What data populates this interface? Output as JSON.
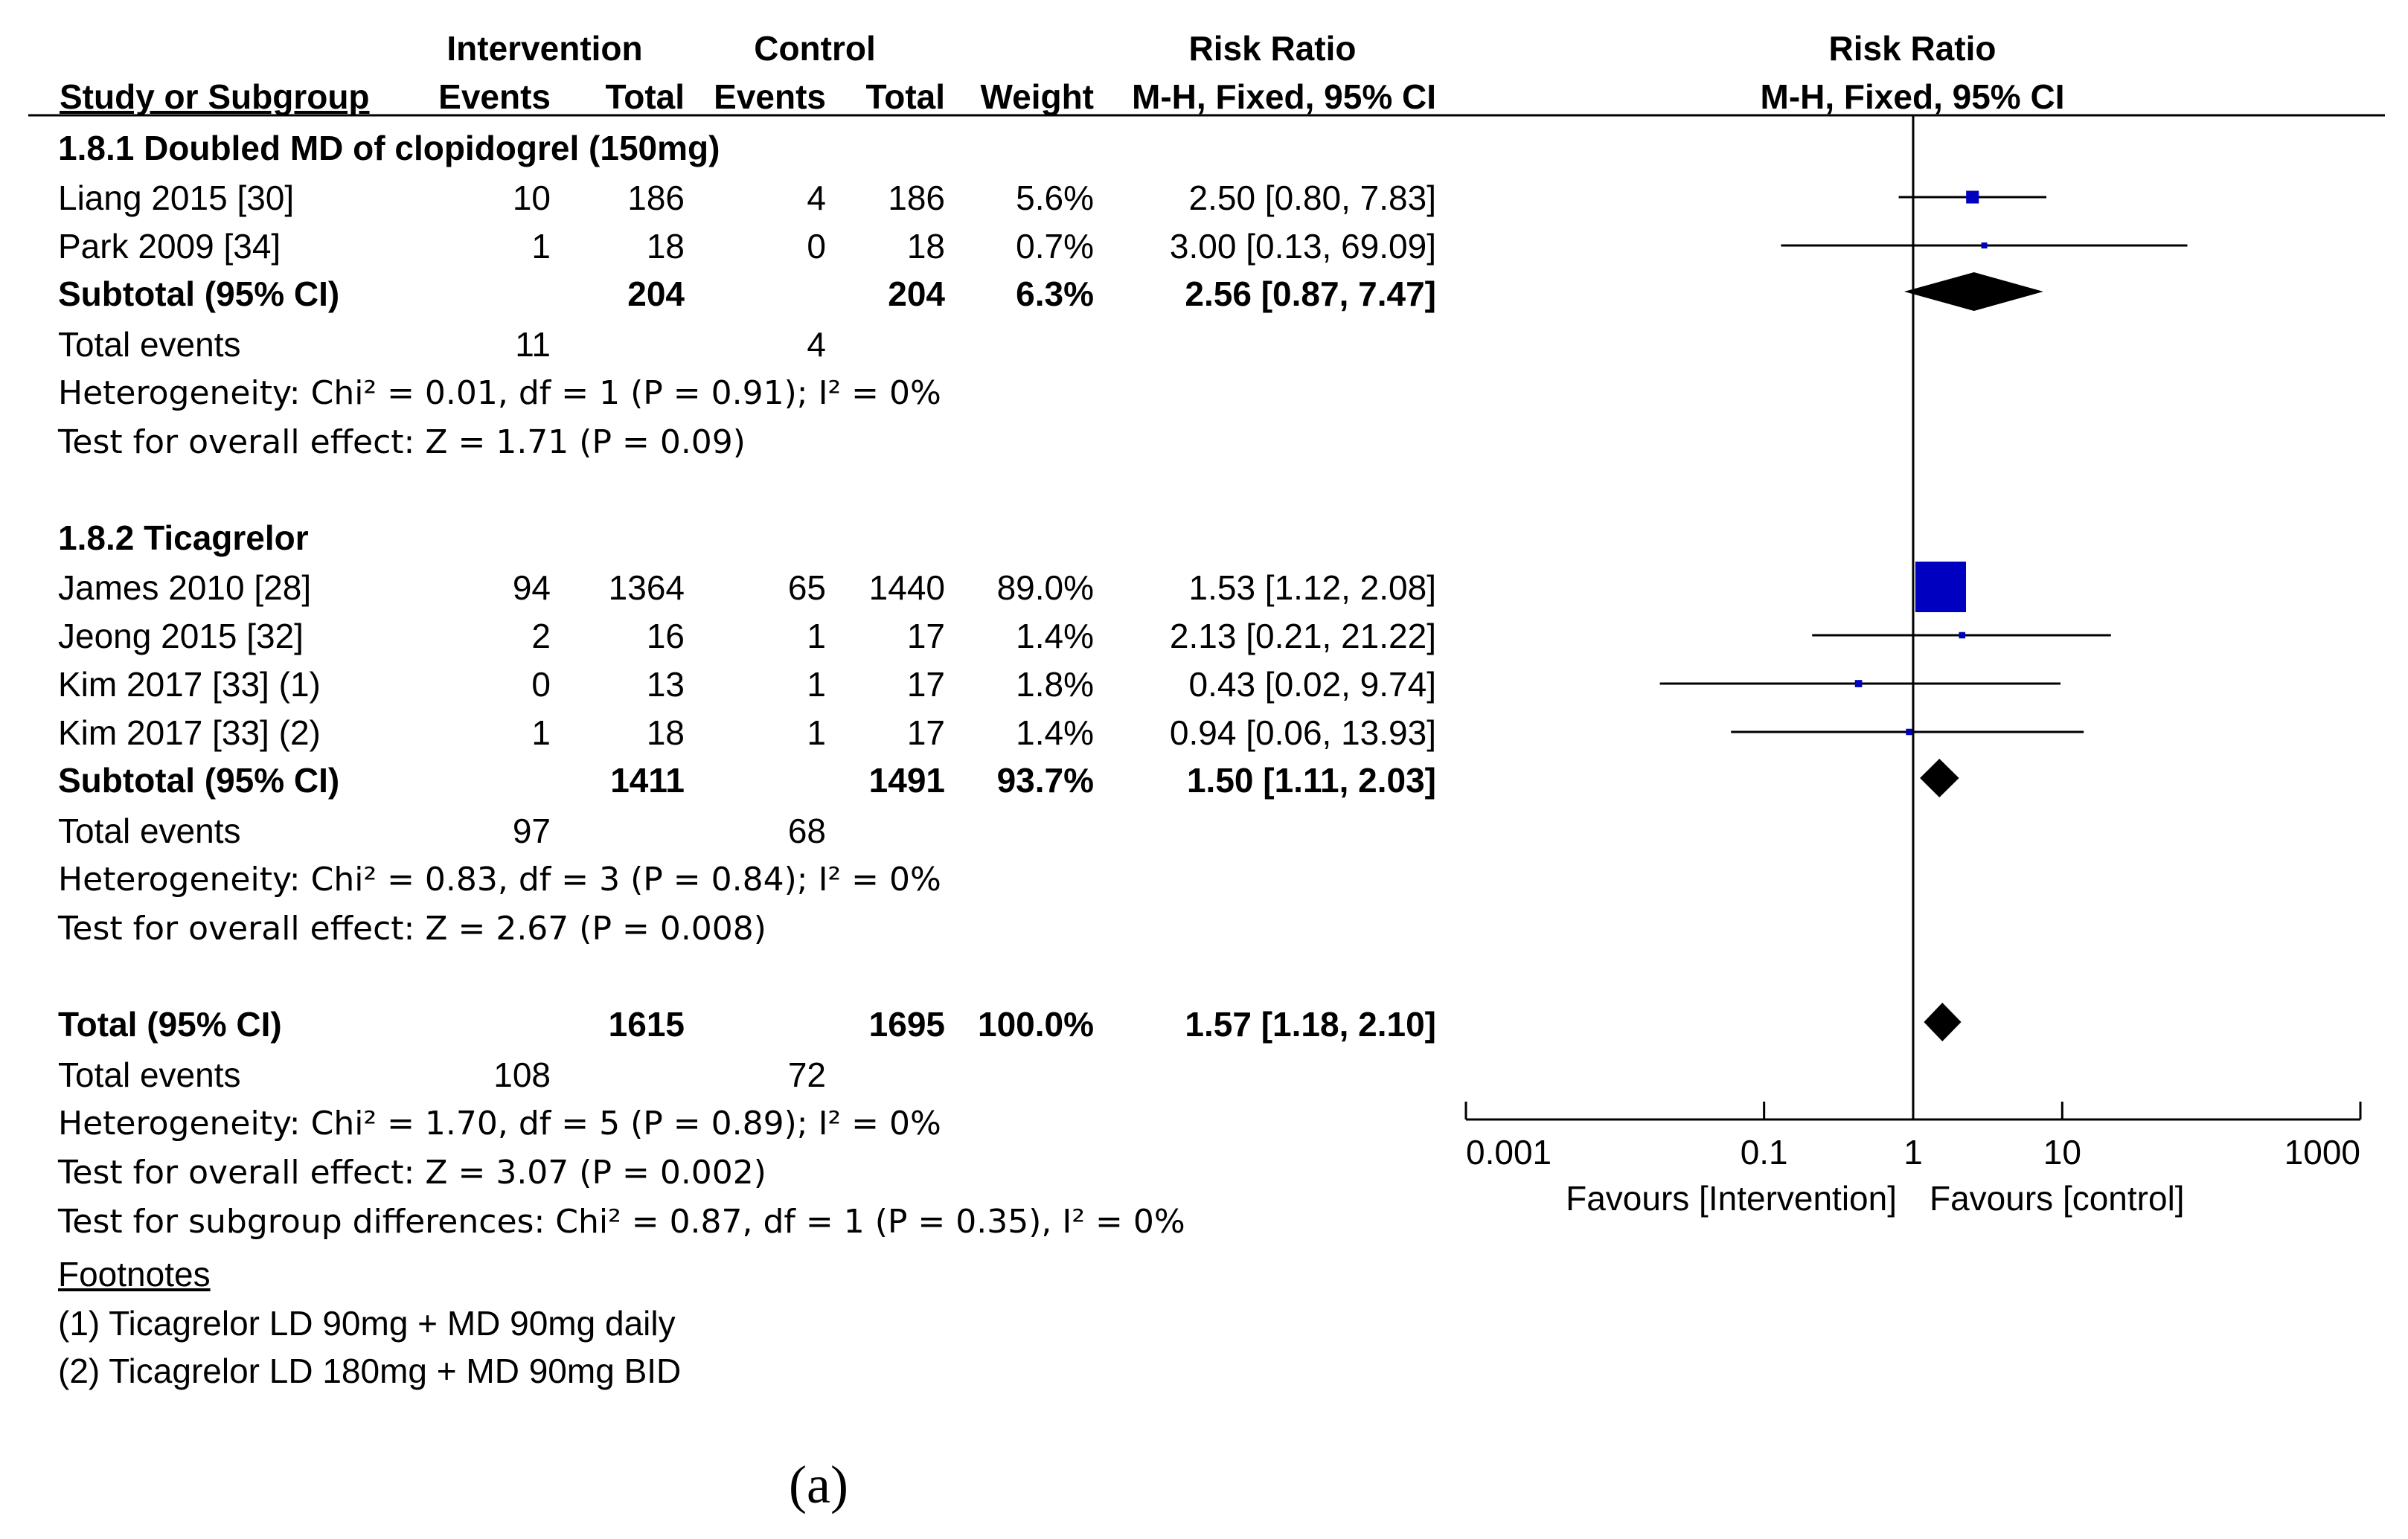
{
  "header": {
    "group_intervention": "Intervention",
    "group_control": "Control",
    "risk_ratio": "Risk Ratio",
    "risk_ratio_plot": "Risk Ratio",
    "study_or_subgroup": "Study or Subgroup",
    "events": "Events",
    "total": "Total",
    "weight": "Weight",
    "method": "M-H, Fixed, 95% CI",
    "method_plot": "M-H, Fixed, 95% CI"
  },
  "subgroups": [
    {
      "title": "1.8.1 Doubled MD of clopidogrel (150mg)",
      "studies": [
        {
          "name": "Liang 2015 [30]",
          "ie": "10",
          "it": "186",
          "ce": "4",
          "ct": "186",
          "weight": "5.6%",
          "rr": "2.50 [0.80, 7.83]"
        },
        {
          "name": "Park 2009 [34]",
          "ie": "1",
          "it": "18",
          "ce": "0",
          "ct": "18",
          "weight": "0.7%",
          "rr": "3.00 [0.13, 69.09]"
        }
      ],
      "subtotal": {
        "label": "Subtotal (95% CI)",
        "it": "204",
        "ct": "204",
        "weight": "6.3%",
        "rr": "2.56 [0.87, 7.47]"
      },
      "total_events": {
        "label": "Total events",
        "ie": "11",
        "ce": "4"
      },
      "heterogeneity": "Heterogeneity: Chi² = 0.01, df = 1 (P = 0.91); I² = 0%",
      "overall": "Test for overall effect: Z = 1.71 (P = 0.09)"
    },
    {
      "title": "1.8.2 Ticagrelor",
      "studies": [
        {
          "name": "James 2010 [28]",
          "ie": "94",
          "it": "1364",
          "ce": "65",
          "ct": "1440",
          "weight": "89.0%",
          "rr": "1.53 [1.12, 2.08]"
        },
        {
          "name": "Jeong 2015 [32]",
          "ie": "2",
          "it": "16",
          "ce": "1",
          "ct": "17",
          "weight": "1.4%",
          "rr": "2.13 [0.21, 21.22]"
        },
        {
          "name": "Kim 2017 [33] (1)",
          "ie": "0",
          "it": "13",
          "ce": "1",
          "ct": "17",
          "weight": "1.8%",
          "rr": "0.43 [0.02, 9.74]"
        },
        {
          "name": "Kim 2017 [33] (2)",
          "ie": "1",
          "it": "18",
          "ce": "1",
          "ct": "17",
          "weight": "1.4%",
          "rr": "0.94 [0.06, 13.93]"
        }
      ],
      "subtotal": {
        "label": "Subtotal (95% CI)",
        "it": "1411",
        "ct": "1491",
        "weight": "93.7%",
        "rr": "1.50 [1.11, 2.03]"
      },
      "total_events": {
        "label": "Total events",
        "ie": "97",
        "ce": "68"
      },
      "heterogeneity": "Heterogeneity: Chi² = 0.83, df = 3 (P = 0.84); I² = 0%",
      "overall": "Test for overall effect: Z = 2.67 (P = 0.008)"
    }
  ],
  "total": {
    "label": "Total (95% CI)",
    "it": "1615",
    "ct": "1695",
    "weight": "100.0%",
    "rr": "1.57 [1.18, 2.10]"
  },
  "total_events": {
    "label": "Total events",
    "ie": "108",
    "ce": "72"
  },
  "heterogeneity": "Heterogeneity: Chi² = 1.70, df = 5 (P = 0.89); I² = 0%",
  "overall": "Test for overall effect: Z = 3.07 (P = 0.002)",
  "subgroup_diff": "Test for subgroup differences: Chi² = 0.87, df = 1 (P = 0.35), I² = 0%",
  "footnotes": {
    "title": "Footnotes",
    "items": [
      "(1) Ticagrelor LD 90mg + MD 90mg daily",
      "(2) Ticagrelor LD 180mg + MD 90mg BID"
    ]
  },
  "caption": "(a)",
  "chart_data": {
    "type": "forest",
    "title": "Risk Ratio",
    "method": "M-H, Fixed, 95% CI",
    "x_scale": "log",
    "xlim": [
      0.001,
      1000
    ],
    "x_ticks": [
      0.001,
      0.1,
      1,
      10,
      1000
    ],
    "x_tick_labels": [
      "0.001",
      "0.1",
      "1",
      "10",
      "1000"
    ],
    "favours_left": "Favours [Intervention]",
    "favours_right": "Favours [control]",
    "studies": [
      {
        "name": "Liang 2015 [30]",
        "rr": 2.5,
        "lo": 0.8,
        "hi": 7.83,
        "weight": 5.6
      },
      {
        "name": "Park 2009 [34]",
        "rr": 3.0,
        "lo": 0.13,
        "hi": 69.09,
        "weight": 0.7
      },
      {
        "name": "James 2010 [28]",
        "rr": 1.53,
        "lo": 1.12,
        "hi": 2.08,
        "weight": 89.0
      },
      {
        "name": "Jeong 2015 [32]",
        "rr": 2.13,
        "lo": 0.21,
        "hi": 21.22,
        "weight": 1.4
      },
      {
        "name": "Kim 2017 [33] (1)",
        "rr": 0.43,
        "lo": 0.02,
        "hi": 9.74,
        "weight": 1.8
      },
      {
        "name": "Kim 2017 [33] (2)",
        "rr": 0.94,
        "lo": 0.06,
        "hi": 13.93,
        "weight": 1.4
      }
    ],
    "pooled": [
      {
        "name": "Subtotal 1.8.1",
        "rr": 2.56,
        "lo": 0.87,
        "hi": 7.47
      },
      {
        "name": "Subtotal 1.8.2",
        "rr": 1.5,
        "lo": 1.11,
        "hi": 2.03
      },
      {
        "name": "Total",
        "rr": 1.57,
        "lo": 1.18,
        "hi": 2.1
      }
    ],
    "colors": {
      "study_box": "#0000c0",
      "diamond": "#000000",
      "line": "#000000"
    }
  }
}
